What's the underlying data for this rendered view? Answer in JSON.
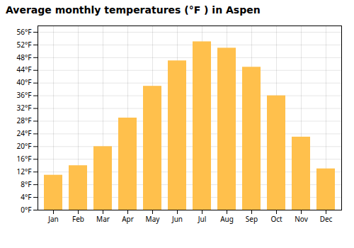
{
  "chart_data": {
    "type": "bar",
    "title": "Average monthly temperatures (°F ) in Aspen",
    "categories": [
      "Jan",
      "Feb",
      "Mar",
      "Apr",
      "May",
      "Jun",
      "Jul",
      "Aug",
      "Sep",
      "Oct",
      "Nov",
      "Dec"
    ],
    "values": [
      11,
      14,
      20,
      29,
      39,
      47,
      53,
      51,
      45,
      36,
      23,
      13
    ],
    "color": "#FFC04C",
    "ylim": [
      0,
      58
    ],
    "yticks": [
      {
        "value": 0,
        "label": "0°F"
      },
      {
        "value": 4,
        "label": "4°F"
      },
      {
        "value": 8,
        "label": "8°F"
      },
      {
        "value": 12,
        "label": "12°F"
      },
      {
        "value": 16,
        "label": "16°F"
      },
      {
        "value": 20,
        "label": "20°F"
      },
      {
        "value": 24,
        "label": "24°F"
      },
      {
        "value": 28,
        "label": "28°F"
      },
      {
        "value": 32,
        "label": "32°F"
      },
      {
        "value": 36,
        "label": "36°F"
      },
      {
        "value": 40,
        "label": "40°F"
      },
      {
        "value": 44,
        "label": "44°F"
      },
      {
        "value": 48,
        "label": "48°F"
      },
      {
        "value": 52,
        "label": "52°F"
      },
      {
        "value": 56,
        "label": "56°F"
      }
    ],
    "grid": true
  }
}
